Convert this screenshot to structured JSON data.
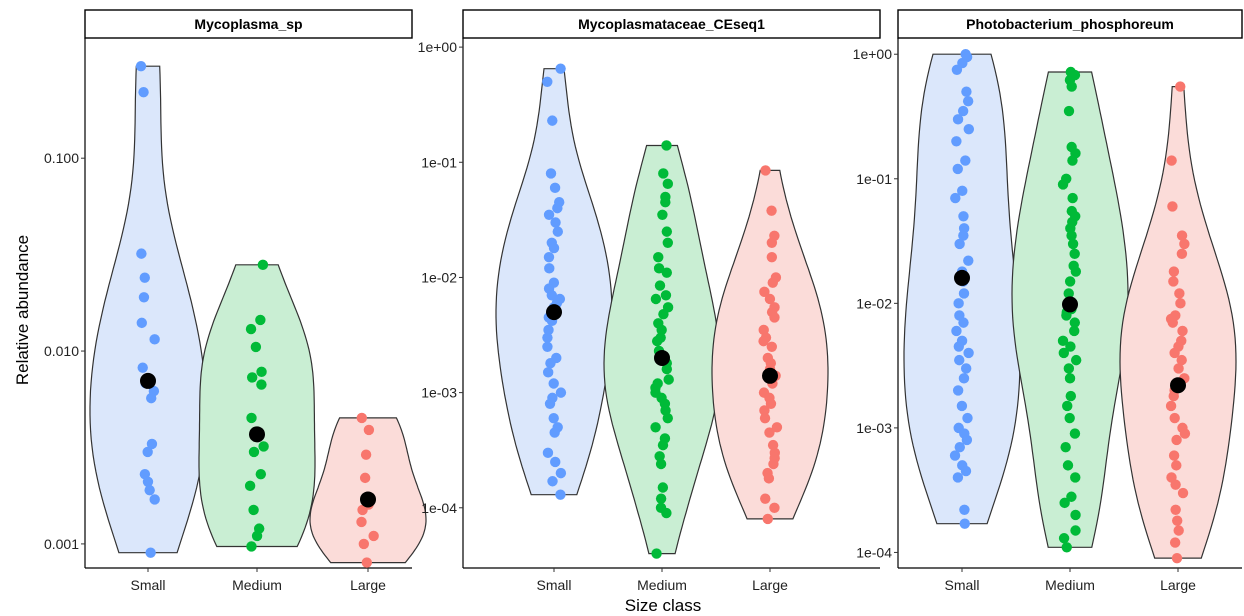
{
  "chart_data": {
    "type": "violin",
    "xlabel": "Size class",
    "ylabel": "Relative abundance",
    "categories": [
      "Small",
      "Medium",
      "Large"
    ],
    "colors": {
      "Small": "#619CFF",
      "Medium": "#00BA38",
      "Large": "#F8766D"
    },
    "fills": {
      "Small": "#dbe7fb",
      "Medium": "#c9eed3",
      "Large": "#fbdcd9"
    },
    "y_scale": "log10",
    "mean_marker_color": "#000000",
    "panels": [
      {
        "title": "Mycoplasma_sp",
        "ylim": [
          0.00075,
          0.42
        ],
        "yticks": [
          0.001,
          0.01,
          0.1
        ],
        "ytick_labels": [
          "0.001",
          "0.010",
          "0.100"
        ],
        "groups": [
          {
            "name": "Small",
            "min": 0.0009,
            "max": 0.3,
            "mean": 0.007,
            "points": [
              0.3,
              0.22,
              0.032,
              0.024,
              0.019,
              0.014,
              0.0115,
              0.0082,
              0.0068,
              0.0062,
              0.0057,
              0.0033,
              0.003,
              0.0023,
              0.0021,
              0.0019,
              0.0017,
              0.0009
            ]
          },
          {
            "name": "Medium",
            "min": 0.00097,
            "max": 0.028,
            "mean": 0.0037,
            "points": [
              0.028,
              0.0145,
              0.013,
              0.0105,
              0.0078,
              0.0073,
              0.0067,
              0.0045,
              0.0032,
              0.003,
              0.0023,
              0.002,
              0.0015,
              0.0012,
              0.0011,
              0.00097
            ]
          },
          {
            "name": "Large",
            "min": 0.0008,
            "max": 0.0045,
            "mean": 0.0017,
            "points": [
              0.0045,
              0.0039,
              0.0029,
              0.0022,
              0.0016,
              0.0015,
              0.0013,
              0.0011,
              0.001,
              0.0008
            ]
          }
        ]
      },
      {
        "title": "Mycoplasmataceae_CEseq1",
        "ylim": [
          3e-05,
          1.2
        ],
        "yticks": [
          0.0001,
          0.001,
          0.01,
          0.1,
          1
        ],
        "ytick_labels": [
          "1e-04",
          "1e-03",
          "1e-02",
          "1e-01",
          "1e+00"
        ],
        "groups": [
          {
            "name": "Small",
            "min": 0.00013,
            "max": 0.65,
            "mean": 0.005,
            "points": [
              0.65,
              0.5,
              0.23,
              0.08,
              0.06,
              0.045,
              0.04,
              0.035,
              0.03,
              0.025,
              0.02,
              0.018,
              0.015,
              0.012,
              0.009,
              0.008,
              0.007,
              0.0065,
              0.006,
              0.0055,
              0.0045,
              0.0042,
              0.0035,
              0.003,
              0.0025,
              0.002,
              0.0018,
              0.0015,
              0.0012,
              0.001,
              0.0009,
              0.0008,
              0.0006,
              0.0005,
              0.00045,
              0.0003,
              0.00025,
              0.0002,
              0.00017,
              0.00013
            ]
          },
          {
            "name": "Medium",
            "min": 4e-05,
            "max": 0.14,
            "mean": 0.002,
            "points": [
              0.14,
              0.08,
              0.065,
              0.05,
              0.045,
              0.035,
              0.025,
              0.02,
              0.015,
              0.012,
              0.011,
              0.0085,
              0.007,
              0.0065,
              0.0055,
              0.0048,
              0.004,
              0.0035,
              0.003,
              0.0028,
              0.0023,
              0.002,
              0.0018,
              0.0016,
              0.0013,
              0.0012,
              0.0011,
              0.001,
              0.0009,
              0.0008,
              0.0007,
              0.0006,
              0.0005,
              0.0004,
              0.00035,
              0.00028,
              0.00024,
              0.00015,
              0.00012,
              0.0001,
              9e-05,
              4e-05
            ]
          },
          {
            "name": "Large",
            "min": 8e-05,
            "max": 0.085,
            "mean": 0.0014,
            "points": [
              0.085,
              0.038,
              0.023,
              0.02,
              0.015,
              0.01,
              0.009,
              0.0075,
              0.0065,
              0.0055,
              0.005,
              0.0045,
              0.0035,
              0.003,
              0.0028,
              0.0025,
              0.002,
              0.0018,
              0.0016,
              0.0014,
              0.0012,
              0.001,
              0.0009,
              0.0008,
              0.0007,
              0.0006,
              0.0005,
              0.00045,
              0.00035,
              0.0003,
              0.00027,
              0.00024,
              0.0002,
              0.00018,
              0.00012,
              0.0001,
              8e-05
            ]
          }
        ]
      },
      {
        "title": "Photobacterium_phosphoreum",
        "ylim": [
          7.5e-05,
          1.35
        ],
        "yticks": [
          0.0001,
          0.001,
          0.01,
          0.1,
          1
        ],
        "ytick_labels": [
          "1e-04",
          "1e-03",
          "1e-02",
          "1e-01",
          "1e+00"
        ],
        "groups": [
          {
            "name": "Small",
            "min": 0.00017,
            "max": 1.0,
            "mean": 0.016,
            "points": [
              1.0,
              0.95,
              0.85,
              0.75,
              0.5,
              0.42,
              0.35,
              0.3,
              0.25,
              0.2,
              0.14,
              0.12,
              0.08,
              0.07,
              0.05,
              0.04,
              0.035,
              0.03,
              0.022,
              0.018,
              0.015,
              0.012,
              0.01,
              0.008,
              0.007,
              0.006,
              0.005,
              0.0045,
              0.004,
              0.0035,
              0.003,
              0.0025,
              0.002,
              0.0015,
              0.0012,
              0.001,
              0.0009,
              0.0008,
              0.0007,
              0.0006,
              0.0005,
              0.00045,
              0.0004,
              0.00022,
              0.00017
            ]
          },
          {
            "name": "Medium",
            "min": 0.00011,
            "max": 0.72,
            "mean": 0.0098,
            "points": [
              0.72,
              0.68,
              0.62,
              0.55,
              0.35,
              0.18,
              0.16,
              0.14,
              0.1,
              0.09,
              0.07,
              0.055,
              0.05,
              0.045,
              0.04,
              0.035,
              0.03,
              0.025,
              0.02,
              0.018,
              0.015,
              0.012,
              0.01,
              0.009,
              0.0085,
              0.008,
              0.007,
              0.006,
              0.005,
              0.0045,
              0.004,
              0.0035,
              0.003,
              0.0025,
              0.0018,
              0.0015,
              0.0012,
              0.0009,
              0.0007,
              0.0005,
              0.0004,
              0.00028,
              0.00025,
              0.0002,
              0.00015,
              0.00013,
              0.00011
            ]
          },
          {
            "name": "Large",
            "min": 9e-05,
            "max": 0.55,
            "mean": 0.0022,
            "points": [
              0.55,
              0.14,
              0.06,
              0.035,
              0.03,
              0.025,
              0.018,
              0.015,
              0.012,
              0.01,
              0.008,
              0.0075,
              0.007,
              0.006,
              0.005,
              0.0045,
              0.004,
              0.0035,
              0.003,
              0.0025,
              0.002,
              0.0018,
              0.0015,
              0.0012,
              0.001,
              0.0009,
              0.0008,
              0.0006,
              0.0005,
              0.0004,
              0.00035,
              0.0003,
              0.00022,
              0.00018,
              0.00015,
              0.00012,
              9e-05
            ]
          }
        ]
      }
    ]
  }
}
